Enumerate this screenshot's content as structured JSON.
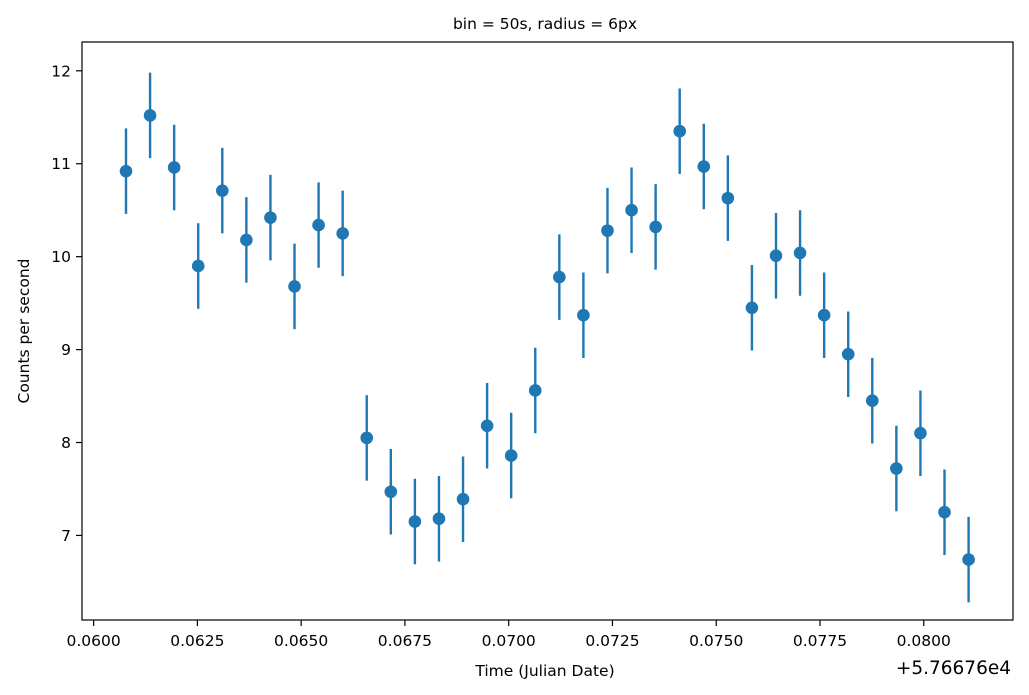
{
  "chart_data": {
    "type": "scatter",
    "title": "bin = 50s, radius = 6px",
    "xlabel": "Time (Julian Date)",
    "ylabel": "Counts per second",
    "x_offset_label": "+5.76676e4",
    "xlim": [
      0.05972,
      0.08215
    ],
    "ylim": [
      6.09,
      12.31
    ],
    "xticks": [
      0.06,
      0.0625,
      0.065,
      0.0675,
      0.07,
      0.0725,
      0.075,
      0.0775,
      0.08
    ],
    "xtick_labels": [
      "0.0600",
      "0.0625",
      "0.0650",
      "0.0675",
      "0.0700",
      "0.0725",
      "0.0750",
      "0.0775",
      "0.0800"
    ],
    "yticks": [
      7,
      8,
      9,
      10,
      11,
      12
    ],
    "ytick_labels": [
      "7",
      "8",
      "9",
      "10",
      "11",
      "12"
    ],
    "grid": false,
    "color": "#1f77b4",
    "error_bar": 0.46,
    "x": [
      0.06078,
      0.06136,
      0.06194,
      0.06252,
      0.0631,
      0.06368,
      0.06426,
      0.06484,
      0.06542,
      0.066,
      0.06658,
      0.06716,
      0.06774,
      0.06832,
      0.0689,
      0.06948,
      0.07006,
      0.07064,
      0.07122,
      0.0718,
      0.07238,
      0.07296,
      0.07354,
      0.07412,
      0.0747,
      0.07528,
      0.07586,
      0.07644,
      0.07702,
      0.0776,
      0.07818,
      0.07876,
      0.07934,
      0.07992,
      0.0805,
      0.08108
    ],
    "y": [
      10.92,
      11.52,
      10.96,
      9.9,
      10.71,
      10.18,
      10.42,
      9.68,
      10.34,
      10.25,
      8.05,
      7.47,
      7.15,
      7.18,
      7.39,
      8.18,
      7.86,
      8.56,
      9.78,
      9.37,
      10.28,
      10.5,
      10.32,
      11.35,
      10.97,
      10.63,
      9.45,
      10.01,
      10.04,
      9.37,
      8.95,
      8.45,
      7.72,
      8.1,
      7.25,
      6.74
    ]
  }
}
